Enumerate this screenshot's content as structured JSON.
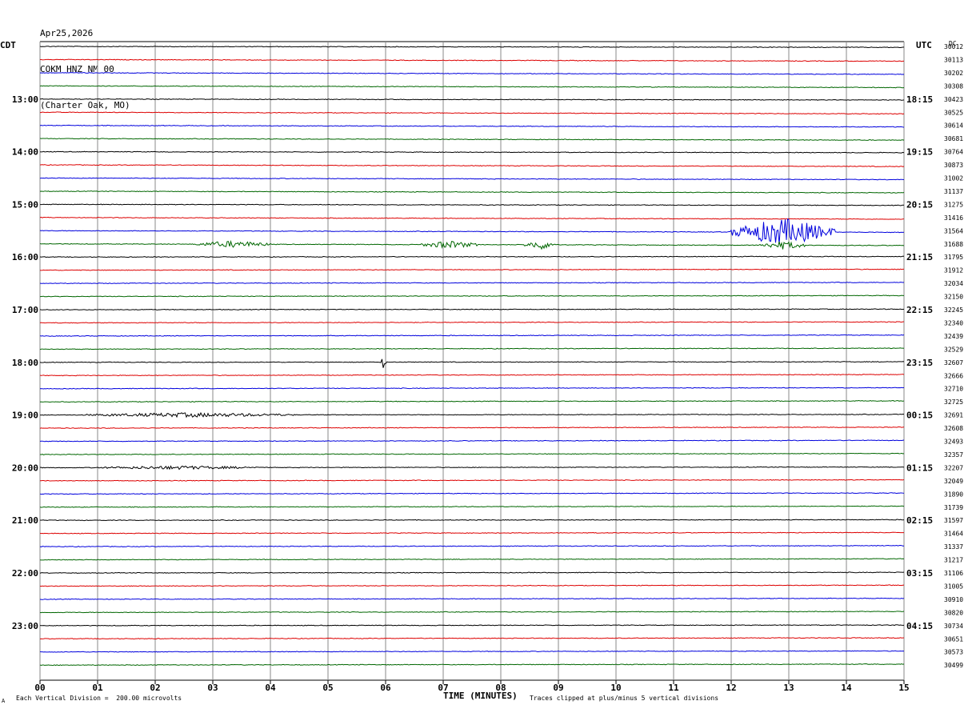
{
  "header": {
    "date": "Apr25,2026",
    "station": "COKM HNZ NM 00",
    "location": "(Charter Oak, MO)"
  },
  "left_zone": "CDT",
  "right_zone": "UTC",
  "dc_header": "DC",
  "footer": {
    "scale_note": "Each Vertical Division =  200.00 microvolts",
    "clip_note": "Traces clipped at plus/minus 5 vertical divisions",
    "mark": "A"
  },
  "chart_data": {
    "type": "line",
    "xlabel": "TIME (MINUTES)",
    "xlim": [
      0,
      15
    ],
    "x_ticks": [
      "00",
      "01",
      "02",
      "03",
      "04",
      "05",
      "06",
      "07",
      "08",
      "09",
      "10",
      "11",
      "12",
      "13",
      "14",
      "15"
    ],
    "left_time_labels": [
      "13:00",
      "14:00",
      "15:00",
      "16:00",
      "17:00",
      "18:00",
      "19:00",
      "20:00",
      "21:00",
      "22:00",
      "23:00"
    ],
    "right_time_labels": [
      "18:15",
      "19:15",
      "20:15",
      "21:15",
      "22:15",
      "23:15",
      "00:15",
      "01:15",
      "02:15",
      "03:15",
      "04:15"
    ],
    "trace_colors": [
      "#000000",
      "#dd0000",
      "#0000dd",
      "#006600"
    ],
    "dc_offsets": [
      "30012",
      "30113",
      "30202",
      "30308",
      "30423",
      "30525",
      "30614",
      "30681",
      "30764",
      "30873",
      "31002",
      "31137",
      "31275",
      "31416",
      "31564",
      "31688",
      "31795",
      "31912",
      "32034",
      "32150",
      "32245",
      "32340",
      "32439",
      "32529",
      "32607",
      "32666",
      "32710",
      "32725",
      "32691",
      "32608",
      "32493",
      "32357",
      "32207",
      "32049",
      "31890",
      "31739",
      "31597",
      "31464",
      "31337",
      "31217",
      "31106",
      "31005",
      "30910",
      "30820",
      "30734",
      "30651",
      "30573",
      "30499"
    ],
    "events": [
      {
        "trace": 14,
        "start_min": 12.0,
        "end_min": 13.8,
        "amp": 3.2
      },
      {
        "trace": 15,
        "start_min": 2.7,
        "end_min": 4.0,
        "amp": 0.7
      },
      {
        "trace": 15,
        "start_min": 6.6,
        "end_min": 7.6,
        "amp": 0.8
      },
      {
        "trace": 15,
        "start_min": 8.4,
        "end_min": 9.0,
        "amp": 1.0
      },
      {
        "trace": 15,
        "start_min": 12.5,
        "end_min": 13.3,
        "amp": 0.9
      },
      {
        "trace": 24,
        "start_min": 5.9,
        "end_min": 6.0,
        "amp": 1.5
      },
      {
        "trace": 28,
        "start_min": 0.8,
        "end_min": 4.4,
        "amp": 0.45
      },
      {
        "trace": 32,
        "start_min": 1.0,
        "end_min": 3.8,
        "amp": 0.35
      }
    ]
  }
}
